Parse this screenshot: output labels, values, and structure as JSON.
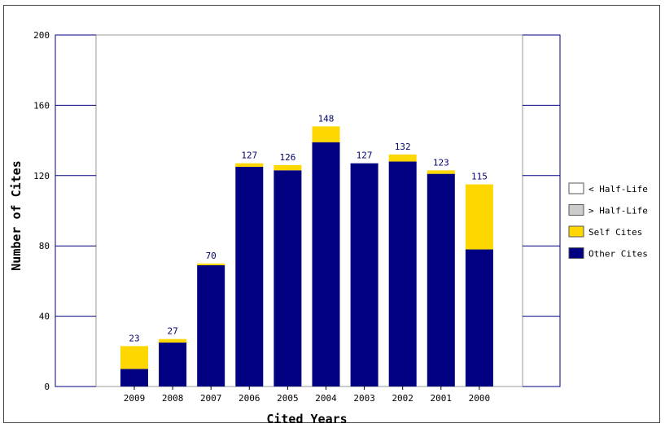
{
  "chart_data": {
    "type": "bar",
    "stacked": true,
    "xlabel": "Cited Years",
    "ylabel": "Number of Cites",
    "ylim": [
      0,
      200
    ],
    "yticks": [
      0,
      40,
      80,
      120,
      160,
      200
    ],
    "categories": [
      "2009",
      "2008",
      "2007",
      "2006",
      "2005",
      "2004",
      "2003",
      "2002",
      "2001",
      "2000"
    ],
    "totals": [
      23,
      27,
      70,
      127,
      126,
      148,
      127,
      132,
      123,
      115
    ],
    "series": [
      {
        "name": "Other Cites",
        "color": "#000080",
        "values": [
          10,
          25,
          69,
          125,
          123,
          139,
          127,
          128,
          121,
          78
        ]
      },
      {
        "name": "Self Cites",
        "color": "#ffd700",
        "values": [
          13,
          2,
          1,
          2,
          3,
          9,
          0,
          4,
          2,
          37
        ]
      }
    ],
    "legend": {
      "position": "right",
      "items": [
        {
          "name": "< Half-Life",
          "color": "#ffffff"
        },
        {
          "name": "> Half-Life",
          "color": "#cccccc"
        },
        {
          "name": "Self Cites",
          "color": "#ffd700"
        },
        {
          "name": "Other Cites",
          "color": "#000080"
        }
      ]
    }
  }
}
